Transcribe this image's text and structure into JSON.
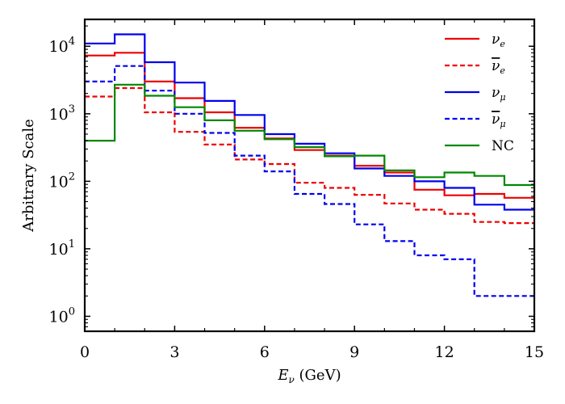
{
  "chart_data": {
    "type": "line",
    "subtype": "step-histogram",
    "title": "",
    "xlabel": {
      "base": "E",
      "sub": "ν",
      "suffix": " (GeV)"
    },
    "ylabel": "Arbitrary Scale",
    "xscale": "linear",
    "yscale": "log",
    "xlim": [
      0,
      15
    ],
    "ylim": [
      0.6,
      25000
    ],
    "xticks": [
      0,
      3,
      6,
      9,
      12,
      15
    ],
    "xtick_labels": [
      "0",
      "3",
      "6",
      "9",
      "12",
      "15"
    ],
    "yticks": [
      1,
      10,
      100,
      1000,
      10000
    ],
    "ytick_labels": [
      {
        "base": "10",
        "exp": "0"
      },
      {
        "base": "10",
        "exp": "1"
      },
      {
        "base": "10",
        "exp": "2"
      },
      {
        "base": "10",
        "exp": "3"
      },
      {
        "base": "10",
        "exp": "4"
      }
    ],
    "grid": false,
    "legend_position": "top-right",
    "bin_edges": [
      0,
      1,
      2,
      3,
      4,
      5,
      6,
      7,
      8,
      9,
      10,
      11,
      12,
      13,
      14,
      15
    ],
    "series": [
      {
        "name": "nu_e",
        "label": {
          "base": "ν",
          "sub": "e",
          "bar": false
        },
        "color": "#ee0000",
        "dash": "solid",
        "values": [
          7300,
          8000,
          3000,
          1700,
          1050,
          620,
          430,
          290,
          240,
          170,
          135,
          75,
          62,
          65,
          57
        ]
      },
      {
        "name": "nubar_e",
        "label": {
          "base": "ν",
          "sub": "e",
          "bar": true
        },
        "color": "#ee0000",
        "dash": "dashed",
        "values": [
          1800,
          2400,
          1050,
          540,
          350,
          210,
          180,
          95,
          80,
          63,
          47,
          38,
          33,
          25,
          24
        ]
      },
      {
        "name": "nu_mu",
        "label": {
          "base": "ν",
          "sub": "μ",
          "bar": false
        },
        "color": "#0000ee",
        "dash": "solid",
        "values": [
          11000,
          15000,
          5800,
          2900,
          1550,
          960,
          500,
          360,
          260,
          155,
          120,
          100,
          80,
          45,
          38
        ]
      },
      {
        "name": "nubar_mu",
        "label": {
          "base": "ν",
          "sub": "μ",
          "bar": true
        },
        "color": "#0000ee",
        "dash": "dashed",
        "values": [
          3000,
          5100,
          2200,
          1000,
          520,
          240,
          140,
          65,
          46,
          23,
          13,
          8,
          7,
          2,
          2
        ]
      },
      {
        "name": "NC",
        "label": {
          "base": "NC",
          "sub": "",
          "bar": false
        },
        "color": "#008800",
        "dash": "solid",
        "values": [
          400,
          2700,
          1850,
          1250,
          800,
          560,
          420,
          320,
          235,
          240,
          145,
          115,
          135,
          120,
          88
        ]
      }
    ]
  }
}
